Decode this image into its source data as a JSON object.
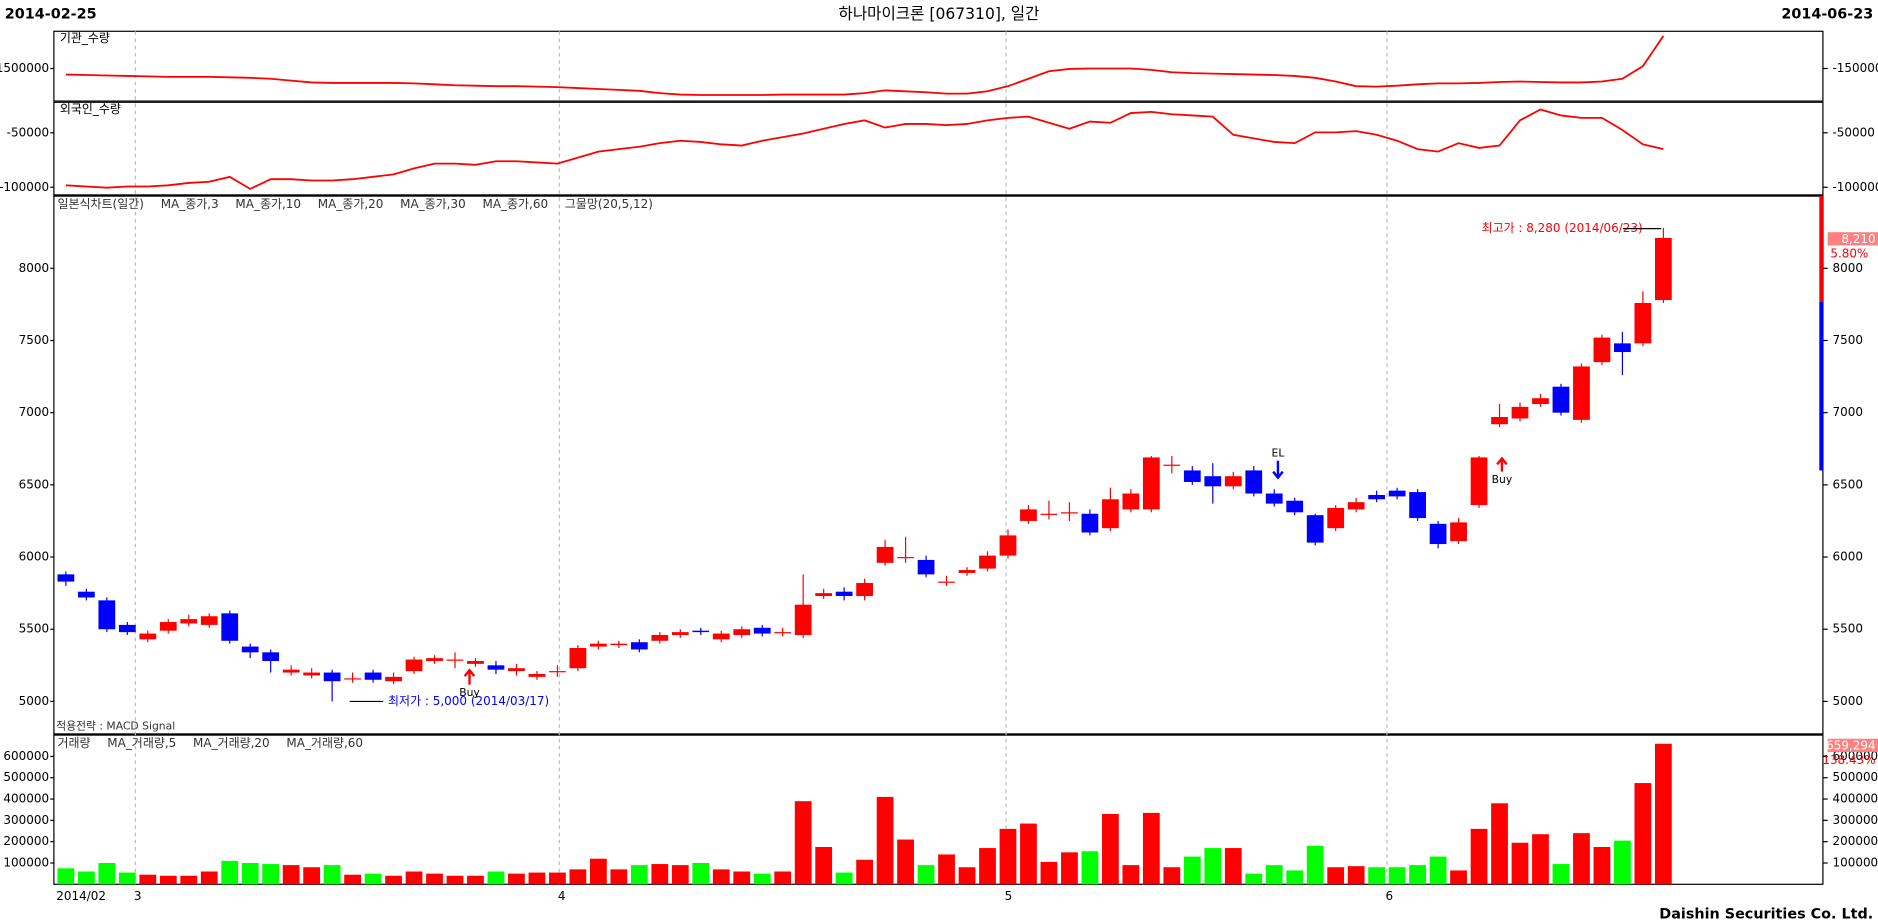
{
  "header": {
    "start": "2014-02-25",
    "title": "하나마이크론 [067310], 일간",
    "end": "2014-06-23",
    "footer": "Daishin Securities Co. Ltd."
  },
  "x_labels": [
    "2014/02",
    "3",
    "4",
    "5",
    "6"
  ],
  "chart_data": [
    {
      "type": "line",
      "title": "기관_수량",
      "color": "#ff0000",
      "ylim": [
        -2200000,
        -700000
      ],
      "yticks": [
        -1500000
      ],
      "values": [
        -1630000,
        -1640000,
        -1650000,
        -1660000,
        -1670000,
        -1680000,
        -1680000,
        -1680000,
        -1690000,
        -1700000,
        -1720000,
        -1760000,
        -1800000,
        -1810000,
        -1810000,
        -1810000,
        -1810000,
        -1820000,
        -1840000,
        -1860000,
        -1870000,
        -1880000,
        -1880000,
        -1890000,
        -1900000,
        -1920000,
        -1940000,
        -1960000,
        -1980000,
        -2030000,
        -2060000,
        -2070000,
        -2070000,
        -2070000,
        -2070000,
        -2060000,
        -2060000,
        -2060000,
        -2060000,
        -2030000,
        -1970000,
        -1990000,
        -2010000,
        -2040000,
        -2040000,
        -1990000,
        -1880000,
        -1720000,
        -1560000,
        -1510000,
        -1500000,
        -1500000,
        -1500000,
        -1530000,
        -1580000,
        -1600000,
        -1610000,
        -1620000,
        -1630000,
        -1640000,
        -1660000,
        -1700000,
        -1780000,
        -1880000,
        -1890000,
        -1870000,
        -1840000,
        -1820000,
        -1820000,
        -1810000,
        -1790000,
        -1780000,
        -1790000,
        -1800000,
        -1800000,
        -1780000,
        -1720000,
        -1450000,
        -800000
      ]
    },
    {
      "type": "line",
      "title": "외국인_수량",
      "color": "#ff0000",
      "ylim": [
        -107000,
        -22000
      ],
      "yticks": [
        -50000,
        -100000
      ],
      "values": [
        -98200,
        -99300,
        -100400,
        -99300,
        -99300,
        -98200,
        -96000,
        -94900,
        -90400,
        -101500,
        -92600,
        -92600,
        -93800,
        -93800,
        -92600,
        -90400,
        -88200,
        -82700,
        -78300,
        -78300,
        -79400,
        -76100,
        -76100,
        -77200,
        -78300,
        -72800,
        -67300,
        -65000,
        -62800,
        -59500,
        -57300,
        -58400,
        -60600,
        -61700,
        -57300,
        -54000,
        -50700,
        -46300,
        -41900,
        -38600,
        -45200,
        -41900,
        -41900,
        -43000,
        -41900,
        -38600,
        -36300,
        -35200,
        -40800,
        -46300,
        -39700,
        -40800,
        -31900,
        -30800,
        -33000,
        -34100,
        -35200,
        -51800,
        -55100,
        -58400,
        -59500,
        -49600,
        -49600,
        -48500,
        -51800,
        -57300,
        -65000,
        -67300,
        -59500,
        -63900,
        -61700,
        -38600,
        -28600,
        -34100,
        -36300,
        -36300,
        -47400,
        -60600,
        -65000
      ]
    },
    {
      "type": "candlestick",
      "legend": [
        "일본식차트(일간)",
        "MA_종가,3",
        "MA_종가,10",
        "MA_종가,20",
        "MA_종가,30",
        "MA_종가,60",
        "그물망(20,5,12)"
      ],
      "up_color": "#ff0000",
      "down_color": "#0000ff",
      "ylim": [
        4775,
        8500
      ],
      "yticks": [
        5000,
        5500,
        6000,
        6500,
        7000,
        7500,
        8000
      ],
      "open": [
        5880,
        5760,
        5700,
        5530,
        5430,
        5490,
        5540,
        5530,
        5610,
        5380,
        5340,
        5200,
        5180,
        5200,
        5160,
        5200,
        5140,
        5210,
        5280,
        5290,
        5260,
        5250,
        5210,
        5170,
        5210,
        5230,
        5380,
        5390,
        5410,
        5420,
        5460,
        5490,
        5430,
        5460,
        5510,
        5480,
        5460,
        5730,
        5760,
        5730,
        5960,
        6000,
        5980,
        5830,
        5890,
        5920,
        6010,
        6250,
        6300,
        6310,
        6300,
        6200,
        6330,
        6330,
        6640,
        6600,
        6560,
        6490,
        6600,
        6440,
        6390,
        6290,
        6200,
        6330,
        6430,
        6460,
        6450,
        6230,
        6110,
        6360,
        6920,
        6960,
        7060,
        7180,
        6950,
        7350,
        7480,
        7480,
        7780
      ],
      "high": [
        5900,
        5780,
        5720,
        5550,
        5490,
        5570,
        5600,
        5610,
        5630,
        5400,
        5360,
        5250,
        5230,
        5220,
        5200,
        5220,
        5200,
        5310,
        5320,
        5340,
        5300,
        5280,
        5260,
        5210,
        5250,
        5390,
        5420,
        5420,
        5430,
        5480,
        5500,
        5510,
        5490,
        5520,
        5530,
        5510,
        5880,
        5780,
        5790,
        5850,
        6120,
        6140,
        6010,
        5870,
        5930,
        6040,
        6190,
        6360,
        6390,
        6380,
        6330,
        6480,
        6470,
        6700,
        6700,
        6630,
        6650,
        6590,
        6630,
        6470,
        6410,
        6300,
        6360,
        6410,
        6460,
        6480,
        6470,
        6250,
        6270,
        6700,
        7060,
        7070,
        7130,
        7200,
        7340,
        7540,
        7560,
        7840,
        8280
      ],
      "low": [
        5800,
        5700,
        5480,
        5460,
        5410,
        5470,
        5520,
        5510,
        5400,
        5300,
        5200,
        5180,
        5160,
        5000,
        5130,
        5130,
        5120,
        5190,
        5260,
        5230,
        5240,
        5190,
        5180,
        5150,
        5170,
        5210,
        5360,
        5370,
        5340,
        5400,
        5440,
        5460,
        5410,
        5440,
        5450,
        5450,
        5440,
        5710,
        5700,
        5700,
        5940,
        5960,
        5860,
        5800,
        5870,
        5900,
        5990,
        6230,
        6260,
        6250,
        6150,
        6180,
        6310,
        6310,
        6580,
        6500,
        6370,
        6470,
        6420,
        6350,
        6290,
        6080,
        6180,
        6310,
        6380,
        6400,
        6250,
        6060,
        6090,
        6340,
        6900,
        6940,
        7040,
        6980,
        6930,
        7330,
        7260,
        7460,
        7760
      ],
      "close": [
        5830,
        5720,
        5500,
        5480,
        5470,
        5550,
        5570,
        5590,
        5420,
        5340,
        5280,
        5220,
        5200,
        5140,
        5160,
        5150,
        5170,
        5290,
        5300,
        5290,
        5280,
        5220,
        5230,
        5190,
        5210,
        5370,
        5400,
        5400,
        5360,
        5460,
        5480,
        5480,
        5470,
        5500,
        5470,
        5480,
        5670,
        5750,
        5730,
        5820,
        6070,
        6000,
        5880,
        5830,
        5910,
        6010,
        6150,
        6330,
        6300,
        6310,
        6170,
        6400,
        6440,
        6690,
        6640,
        6520,
        6490,
        6560,
        6440,
        6370,
        6310,
        6100,
        6340,
        6380,
        6400,
        6420,
        6270,
        6090,
        6240,
        6690,
        6970,
        7040,
        7100,
        7000,
        7320,
        7520,
        7420,
        7760,
        8210
      ],
      "annotations": [
        "최고가 : 8,280 (2014/06/23)",
        "최저가 : 5,000 (2014/03/17)",
        "Buy",
        "Buy",
        "EL",
        "적용전략 : MACD Signal"
      ],
      "last_label": "8,210",
      "change_label": "5.80%"
    },
    {
      "type": "bar",
      "legend": [
        "거래량",
        "MA_거래량,5",
        "MA_거래량,20",
        "MA_거래량,60"
      ],
      "up_color": "#ff0000",
      "down_color": "#00ff00",
      "ylim": [
        0,
        700000
      ],
      "yticks": [
        100000,
        200000,
        300000,
        400000,
        500000,
        600000
      ],
      "values": [
        75000,
        60000,
        100000,
        55000,
        45000,
        40000,
        40000,
        60000,
        110000,
        100000,
        95000,
        90000,
        80000,
        90000,
        45000,
        50000,
        40000,
        60000,
        50000,
        40000,
        40000,
        60000,
        50000,
        55000,
        55000,
        70000,
        120000,
        70000,
        90000,
        95000,
        90000,
        100000,
        70000,
        60000,
        50000,
        60000,
        390000,
        175000,
        55000,
        115000,
        410000,
        210000,
        90000,
        140000,
        80000,
        170000,
        260000,
        285000,
        105000,
        150000,
        155000,
        330000,
        90000,
        335000,
        80000,
        130000,
        170000,
        170000,
        50000,
        90000,
        65000,
        180000,
        80000,
        85000,
        80000,
        80000,
        90000,
        130000,
        65000,
        260000,
        380000,
        195000,
        235000,
        95000,
        240000,
        175000,
        205000,
        475000,
        659294
      ],
      "last_label": "659,294",
      "change_label": "138.43%"
    }
  ]
}
